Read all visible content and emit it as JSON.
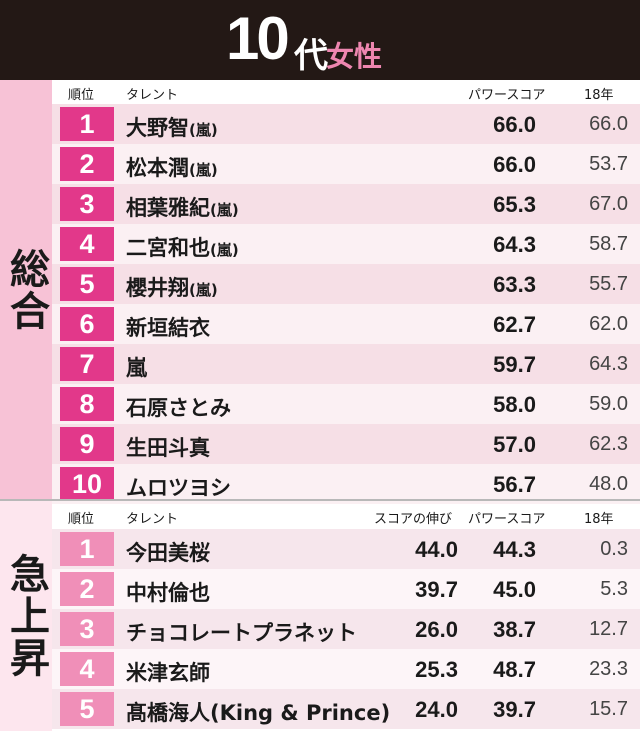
{
  "header": {
    "age": "10",
    "dai": "代",
    "gender": "女性"
  },
  "sections": {
    "total_label": "総合",
    "rise_label": "急上昇"
  },
  "total_columns": {
    "rank": "順位",
    "talent": "タレント",
    "power": "パワースコア",
    "year18": "18年"
  },
  "rise_columns": {
    "rank": "順位",
    "talent": "タレント",
    "growth": "スコアの伸び",
    "power": "パワースコア",
    "year18": "18年"
  },
  "total_rows": [
    {
      "rank": "1",
      "name": "大野智",
      "sub": "(嵐)",
      "score": "66.0",
      "prev": "66.0"
    },
    {
      "rank": "2",
      "name": "松本潤",
      "sub": "(嵐)",
      "score": "66.0",
      "prev": "53.7"
    },
    {
      "rank": "3",
      "name": "相葉雅紀",
      "sub": "(嵐)",
      "score": "65.3",
      "prev": "67.0"
    },
    {
      "rank": "4",
      "name": "二宮和也",
      "sub": "(嵐)",
      "score": "64.3",
      "prev": "58.7"
    },
    {
      "rank": "5",
      "name": "櫻井翔",
      "sub": "(嵐)",
      "score": "63.3",
      "prev": "55.7"
    },
    {
      "rank": "6",
      "name": "新垣結衣",
      "sub": "",
      "score": "62.7",
      "prev": "62.0"
    },
    {
      "rank": "7",
      "name": "嵐",
      "sub": "",
      "score": "59.7",
      "prev": "64.3"
    },
    {
      "rank": "8",
      "name": "石原さとみ",
      "sub": "",
      "score": "58.0",
      "prev": "59.0"
    },
    {
      "rank": "9",
      "name": "生田斗真",
      "sub": "",
      "score": "57.0",
      "prev": "62.3"
    },
    {
      "rank": "10",
      "name": "ムロツヨシ",
      "sub": "",
      "score": "56.7",
      "prev": "48.0"
    }
  ],
  "rise_rows": [
    {
      "rank": "1",
      "name": "今田美桜",
      "growth": "44.0",
      "score": "44.3",
      "prev": "0.3"
    },
    {
      "rank": "2",
      "name": "中村倫也",
      "growth": "39.7",
      "score": "45.0",
      "prev": "5.3"
    },
    {
      "rank": "3",
      "name": "チョコレートプラネット",
      "growth": "26.0",
      "score": "38.7",
      "prev": "12.7"
    },
    {
      "rank": "4",
      "name": "米津玄師",
      "growth": "25.3",
      "score": "48.7",
      "prev": "23.3"
    },
    {
      "rank": "5",
      "name": "髙橋海人(King & Prince)",
      "growth": "24.0",
      "score": "39.7",
      "prev": "15.7"
    }
  ]
}
